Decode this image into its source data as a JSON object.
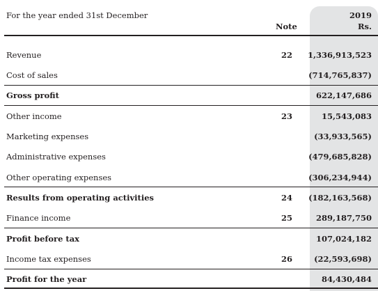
{
  "header": {
    "period": "For the year ended 31st December",
    "note_label": "Note",
    "year": "2019",
    "unit": "Rs."
  },
  "rows": [
    {
      "label": "Revenue",
      "note": "22",
      "value": "1,336,913,523"
    },
    {
      "label": "Cost of sales",
      "note": "",
      "value": "(714,765,837)"
    },
    {
      "label": "Gross profit",
      "note": "",
      "value": "622,147,686"
    },
    {
      "label": "Other income",
      "note": "23",
      "value": "15,543,083"
    },
    {
      "label": "Marketing expenses",
      "note": "",
      "value": "(33,933,565)"
    },
    {
      "label": "Administrative expenses",
      "note": "",
      "value": "(479,685,828)"
    },
    {
      "label": "Other operating expenses",
      "note": "",
      "value": "(306,234,944)"
    },
    {
      "label": "Results from operating activities",
      "note": "24",
      "value": "(182,163,568)"
    },
    {
      "label": "Finance income",
      "note": "25",
      "value": "289,187,750"
    },
    {
      "label": "Profit before tax",
      "note": "",
      "value": "107,024,182"
    },
    {
      "label": "Income tax expenses",
      "note": "26",
      "value": "(22,593,698)"
    },
    {
      "label": "Profit for the year",
      "note": "",
      "value": "84,430,484"
    }
  ]
}
